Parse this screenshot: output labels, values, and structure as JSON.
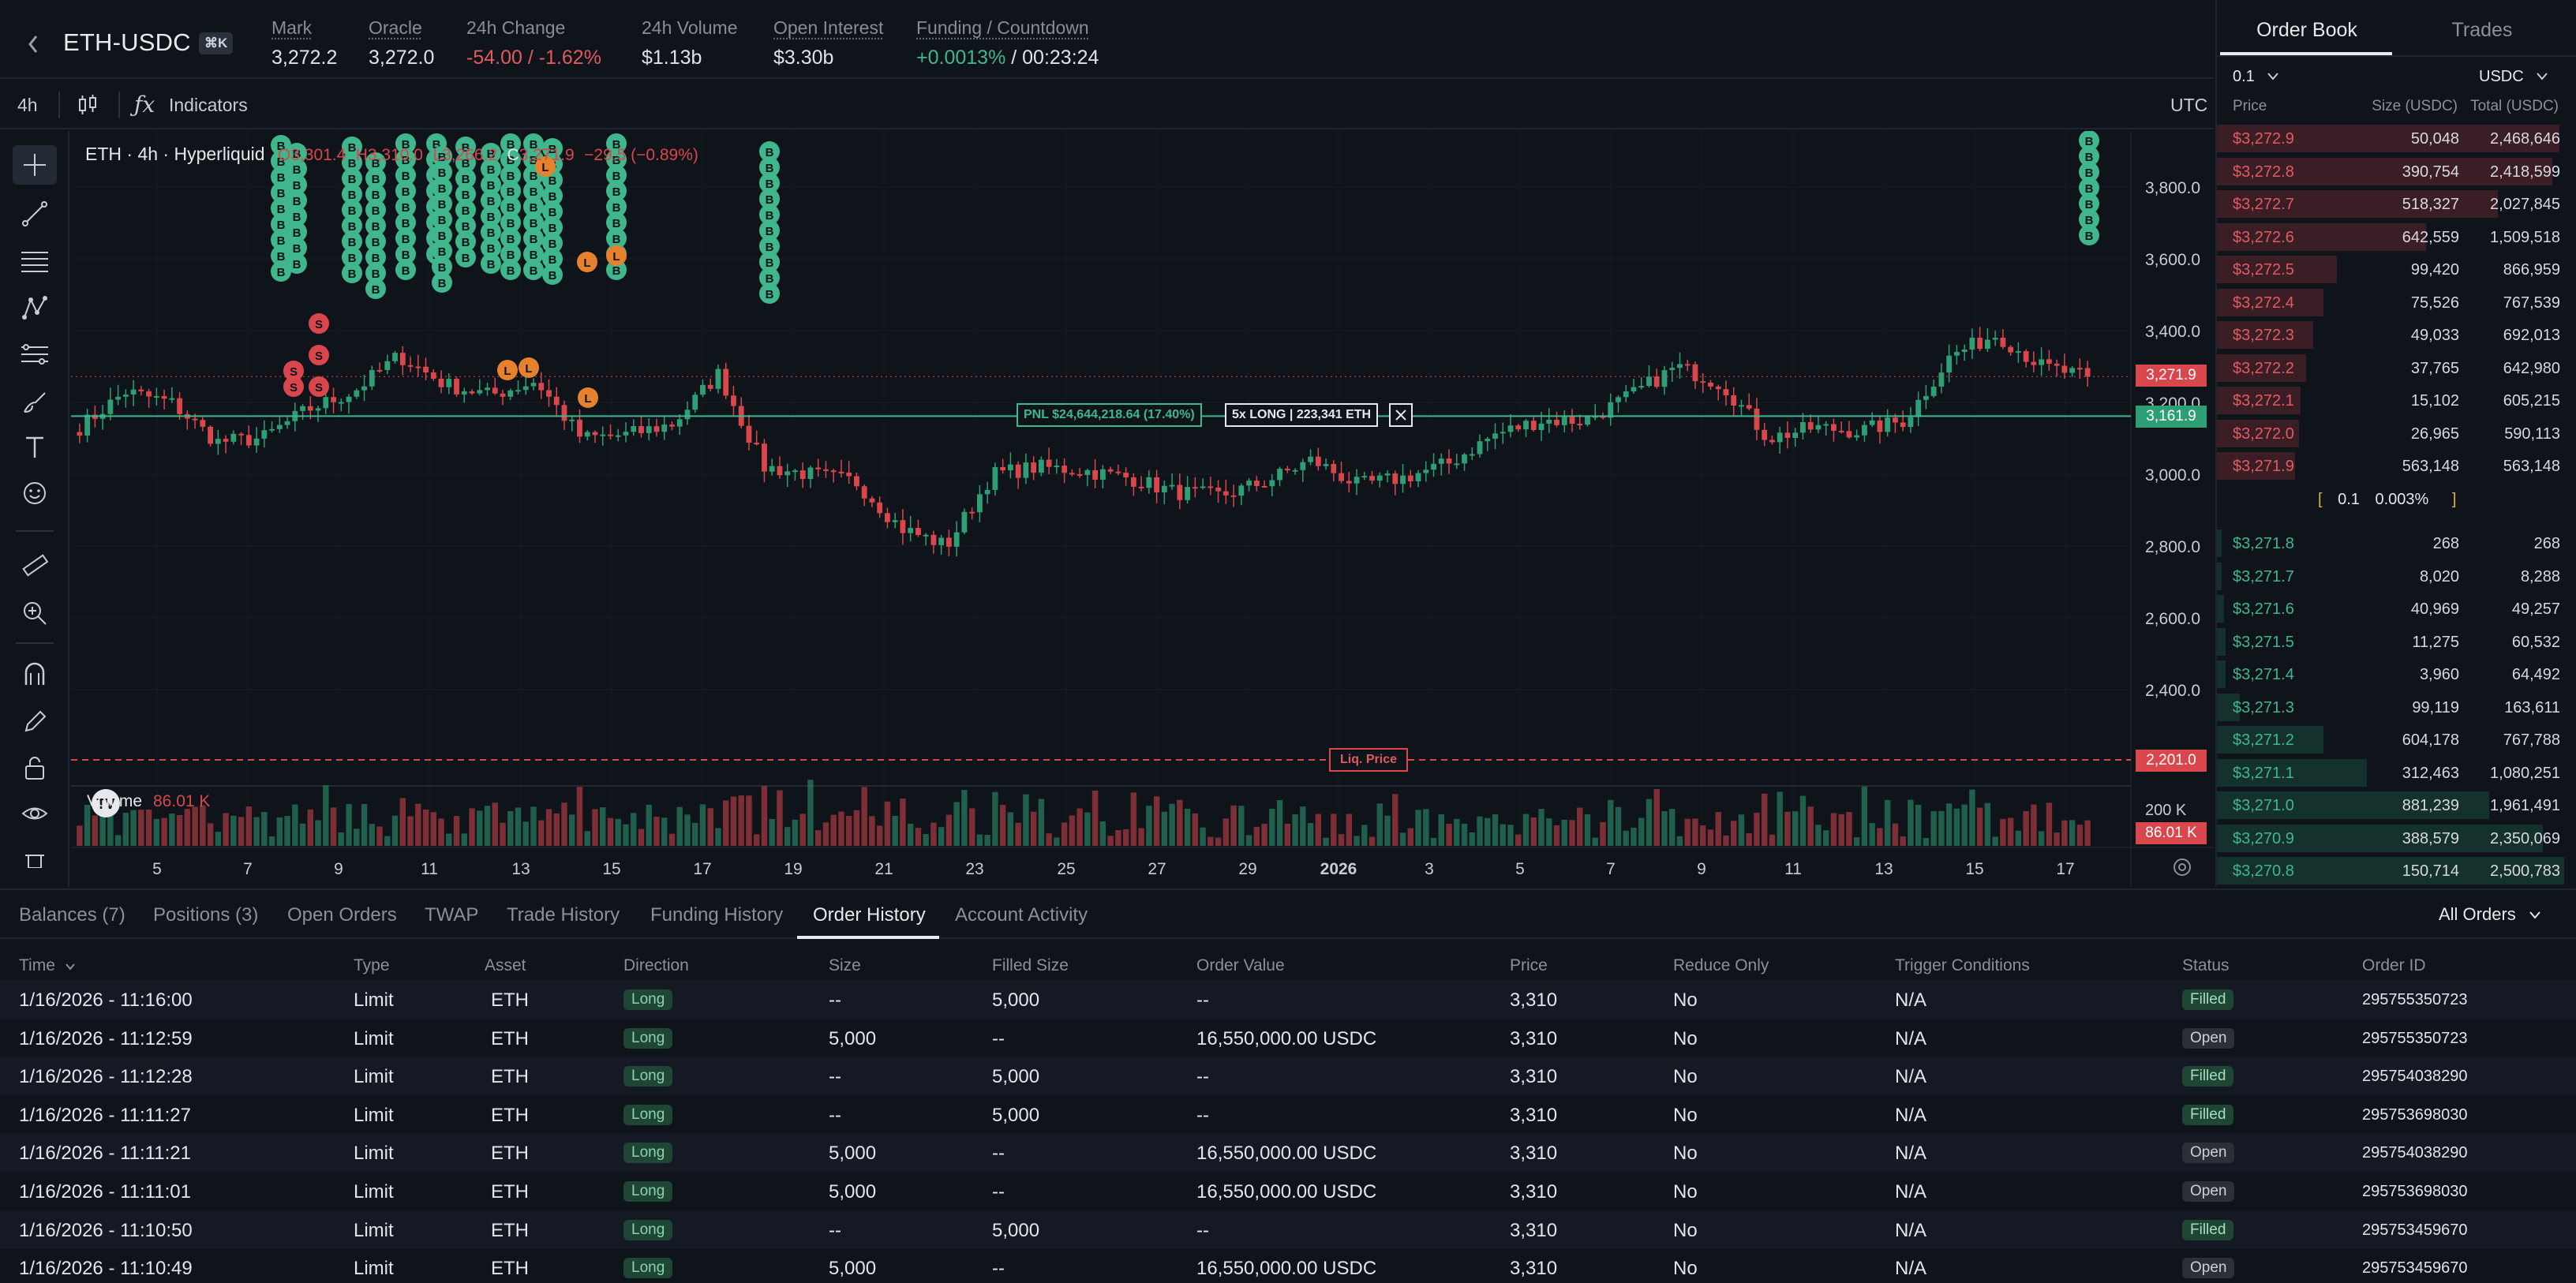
{
  "header": {
    "pair": "ETH-USDC",
    "hotkey": "⌘K",
    "stats": [
      {
        "label": "Mark",
        "value": "3,272.2",
        "underline": true
      },
      {
        "label": "Oracle",
        "value": "3,272.0",
        "underline": true
      },
      {
        "label": "24h Change",
        "value": "-54.00 / -1.62%",
        "underline": false
      },
      {
        "label": "24h Volume",
        "value": "$1.13b",
        "underline": false
      },
      {
        "label": "Open Interest",
        "value": "$3.30b",
        "underline": true
      }
    ],
    "funding": {
      "label": "Funding / Countdown",
      "rate": "+0.0013%",
      "countdown": "/ 00:23:24"
    }
  },
  "chart_toolbar": {
    "interval": "4h",
    "indicators": "Indicators",
    "timezone": "UTC"
  },
  "chart": {
    "legend_title": "ETH · 4h · Hyperliquid",
    "legend_o": "O3,301.4",
    "legend_h": "H3,310.0",
    "legend_l": "L3,266.2",
    "legend_c_label": "C",
    "legend_c": "3,271.9",
    "legend_change": "−29.5 (−0.89%)",
    "volume_label": "Volume",
    "volume_value": "86.01 K",
    "y_ticks": [
      "3,800.0",
      "3,600.0",
      "3,400.0",
      "3,200.0",
      "3,000.0",
      "2,800.0",
      "2,600.0",
      "2,400.0"
    ],
    "vol_tick": "200 K",
    "last_price_tag": "3,271.9",
    "position_price_tag": "3,161.9",
    "liq_tag": "2,201.0",
    "vol_tag": "86.01 K",
    "pnl_label": "PNL $24,644,218.64 (17.40%)",
    "position_label": "5x LONG | 223,341 ETH",
    "liq_label": "Liq. Price",
    "x_ticks": [
      "5",
      "7",
      "9",
      "11",
      "13",
      "15",
      "17",
      "19",
      "21",
      "23",
      "25",
      "27",
      "29",
      "2026",
      "3",
      "5",
      "7",
      "9",
      "11",
      "13",
      "15",
      "17"
    ],
    "colors": {
      "up": "#2e9e74",
      "down": "#d9474d",
      "buy_marker": "#3fb68b",
      "sell_marker": "#d9474d",
      "liq_marker": "#e6822e"
    }
  },
  "chart_data": {
    "type": "candlestick",
    "timeframe": "4h",
    "ylim": [
      2050,
      3950
    ],
    "x_ticks": [
      "5",
      "7",
      "9",
      "11",
      "13",
      "15",
      "17",
      "19",
      "21",
      "23",
      "25",
      "27",
      "29",
      "2026",
      "3",
      "5",
      "7",
      "9",
      "11",
      "13",
      "15",
      "17"
    ],
    "close_waypoints": [
      3130,
      3230,
      3200,
      3090,
      3100,
      3180,
      3230,
      3330,
      3250,
      3220,
      3260,
      3100,
      3110,
      3140,
      3280,
      3020,
      3000,
      2980,
      2850,
      2800,
      3000,
      3020,
      3010,
      2990,
      2950,
      2940,
      2980,
      3040,
      2970,
      2990,
      3030,
      3110,
      3150,
      3150,
      3220,
      3300,
      3250,
      3100,
      3130,
      3120,
      3150,
      3330,
      3390,
      3300,
      3270
    ],
    "last_close": 3271.9,
    "position_entry_line": 3161.9,
    "liquidation_price": 2201.0
  },
  "orderbook": {
    "tabs": [
      "Order Book",
      "Trades"
    ],
    "tick": "0.1",
    "currency": "USDC",
    "col_price": "Price",
    "col_size": "Size (USDC)",
    "col_total": "Total (USDC)",
    "asks": [
      {
        "price": "$3,272.9",
        "size": "50,048",
        "total": "2,468,646"
      },
      {
        "price": "$3,272.8",
        "size": "390,754",
        "total": "2,418,599"
      },
      {
        "price": "$3,272.7",
        "size": "518,327",
        "total": "2,027,845"
      },
      {
        "price": "$3,272.6",
        "size": "642,559",
        "total": "1,509,518"
      },
      {
        "price": "$3,272.5",
        "size": "99,420",
        "total": "866,959"
      },
      {
        "price": "$3,272.4",
        "size": "75,526",
        "total": "767,539"
      },
      {
        "price": "$3,272.3",
        "size": "49,033",
        "total": "692,013"
      },
      {
        "price": "$3,272.2",
        "size": "37,765",
        "total": "642,980"
      },
      {
        "price": "$3,272.1",
        "size": "15,102",
        "total": "605,215"
      },
      {
        "price": "$3,272.0",
        "size": "26,965",
        "total": "590,113"
      },
      {
        "price": "$3,271.9",
        "size": "563,148",
        "total": "563,148"
      }
    ],
    "spread_value": "0.1",
    "spread_pct": "0.003%",
    "bids": [
      {
        "price": "$3,271.8",
        "size": "268",
        "total": "268"
      },
      {
        "price": "$3,271.7",
        "size": "8,020",
        "total": "8,288"
      },
      {
        "price": "$3,271.6",
        "size": "40,969",
        "total": "49,257"
      },
      {
        "price": "$3,271.5",
        "size": "11,275",
        "total": "60,532"
      },
      {
        "price": "$3,271.4",
        "size": "3,960",
        "total": "64,492"
      },
      {
        "price": "$3,271.3",
        "size": "99,119",
        "total": "163,611"
      },
      {
        "price": "$3,271.2",
        "size": "604,178",
        "total": "767,788"
      },
      {
        "price": "$3,271.1",
        "size": "312,463",
        "total": "1,080,251"
      },
      {
        "price": "$3,271.0",
        "size": "881,239",
        "total": "1,961,491"
      },
      {
        "price": "$3,270.9",
        "size": "388,579",
        "total": "2,350,069"
      },
      {
        "price": "$3,270.8",
        "size": "150,714",
        "total": "2,500,783"
      }
    ]
  },
  "bottom": {
    "tabs": [
      "Balances (7)",
      "Positions (3)",
      "Open Orders",
      "TWAP",
      "Trade History",
      "Funding History",
      "Order History",
      "Account Activity"
    ],
    "active_tab": "Order History",
    "filter": "All Orders",
    "columns": [
      "Time",
      "Type",
      "Asset",
      "Direction",
      "Size",
      "Filled Size",
      "Order Value",
      "Price",
      "Reduce Only",
      "Trigger Conditions",
      "Status",
      "Order ID"
    ],
    "rows": [
      {
        "time": "1/16/2026 - 11:16:00",
        "type": "Limit",
        "asset": "ETH",
        "direction": "Long",
        "size": "--",
        "filled": "5,000",
        "value": "--",
        "price": "3,310",
        "reduce": "No",
        "trigger": "N/A",
        "status": "Filled",
        "id": "295755350723"
      },
      {
        "time": "1/16/2026 - 11:12:59",
        "type": "Limit",
        "asset": "ETH",
        "direction": "Long",
        "size": "5,000",
        "filled": "--",
        "value": "16,550,000.00 USDC",
        "price": "3,310",
        "reduce": "No",
        "trigger": "N/A",
        "status": "Open",
        "id": "295755350723"
      },
      {
        "time": "1/16/2026 - 11:12:28",
        "type": "Limit",
        "asset": "ETH",
        "direction": "Long",
        "size": "--",
        "filled": "5,000",
        "value": "--",
        "price": "3,310",
        "reduce": "No",
        "trigger": "N/A",
        "status": "Filled",
        "id": "295754038290"
      },
      {
        "time": "1/16/2026 - 11:11:27",
        "type": "Limit",
        "asset": "ETH",
        "direction": "Long",
        "size": "--",
        "filled": "5,000",
        "value": "--",
        "price": "3,310",
        "reduce": "No",
        "trigger": "N/A",
        "status": "Filled",
        "id": "295753698030"
      },
      {
        "time": "1/16/2026 - 11:11:21",
        "type": "Limit",
        "asset": "ETH",
        "direction": "Long",
        "size": "5,000",
        "filled": "--",
        "value": "16,550,000.00 USDC",
        "price": "3,310",
        "reduce": "No",
        "trigger": "N/A",
        "status": "Open",
        "id": "295754038290"
      },
      {
        "time": "1/16/2026 - 11:11:01",
        "type": "Limit",
        "asset": "ETH",
        "direction": "Long",
        "size": "5,000",
        "filled": "--",
        "value": "16,550,000.00 USDC",
        "price": "3,310",
        "reduce": "No",
        "trigger": "N/A",
        "status": "Open",
        "id": "295753698030"
      },
      {
        "time": "1/16/2026 - 11:10:50",
        "type": "Limit",
        "asset": "ETH",
        "direction": "Long",
        "size": "--",
        "filled": "5,000",
        "value": "--",
        "price": "3,310",
        "reduce": "No",
        "trigger": "N/A",
        "status": "Filled",
        "id": "295753459670"
      },
      {
        "time": "1/16/2026 - 11:10:49",
        "type": "Limit",
        "asset": "ETH",
        "direction": "Long",
        "size": "5,000",
        "filled": "--",
        "value": "16,550,000.00 USDC",
        "price": "3,310",
        "reduce": "No",
        "trigger": "N/A",
        "status": "Open",
        "id": "295753459670"
      }
    ]
  }
}
